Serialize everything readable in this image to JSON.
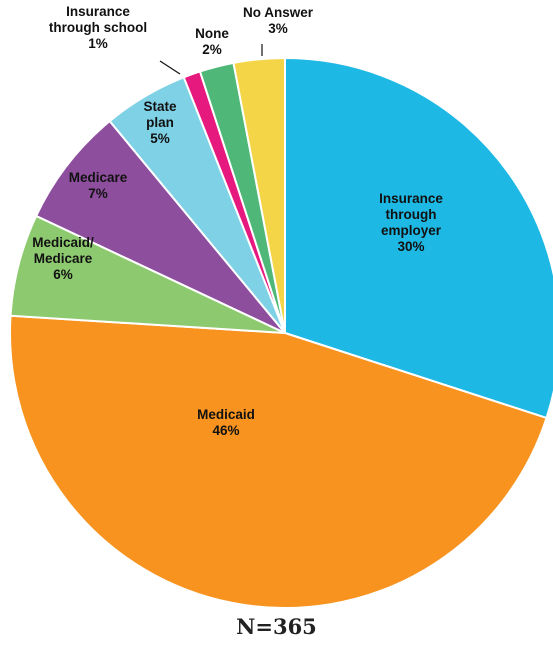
{
  "chart_data": {
    "type": "pie",
    "slices": [
      {
        "label_lines": [
          "Insurance",
          "through",
          "employer"
        ],
        "value_label": "30%",
        "value": 30,
        "color": "#1DB8E4"
      },
      {
        "label_lines": [
          "Medicaid"
        ],
        "value_label": "46%",
        "value": 46,
        "color": "#F7931E"
      },
      {
        "label_lines": [
          "Medicaid/",
          "Medicare"
        ],
        "value_label": "6%",
        "value": 6,
        "color": "#8DC96F"
      },
      {
        "label_lines": [
          "Medicare"
        ],
        "value_label": "7%",
        "value": 7,
        "color": "#8E4E9E"
      },
      {
        "label_lines": [
          "State",
          "plan"
        ],
        "value_label": "5%",
        "value": 5,
        "color": "#7FD1E6"
      },
      {
        "label_lines": [
          "Insurance",
          "through school"
        ],
        "value_label": "1%",
        "value": 1,
        "color": "#E6197F"
      },
      {
        "label_lines": [
          "None"
        ],
        "value_label": "2%",
        "value": 2,
        "color": "#4FB878"
      },
      {
        "label_lines": [
          "No Answer"
        ],
        "value_label": "3%",
        "value": 3,
        "color": "#F4D548"
      }
    ],
    "start_position": "12 o'clock",
    "direction": "clockwise"
  },
  "footer": {
    "n_label": "N=365"
  }
}
